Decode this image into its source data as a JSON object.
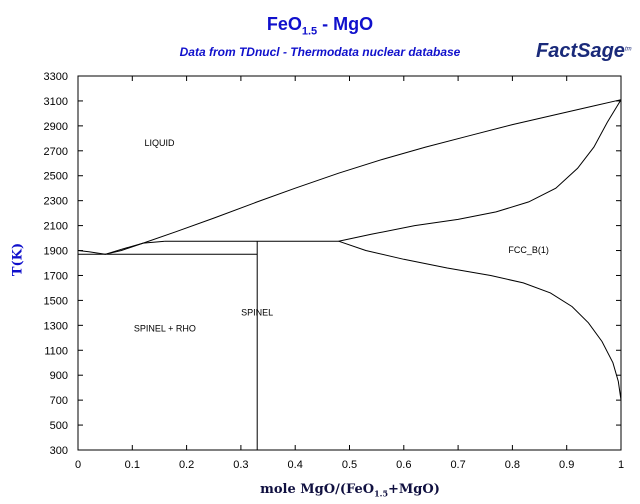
{
  "chart_data": {
    "type": "line",
    "title": {
      "main": "FeO",
      "sub": "1.5",
      "rest": " - MgO"
    },
    "subtitle": "Data from TDnucl - Thermodata nuclear database",
    "logo": {
      "text": "FactSage",
      "mark": "tm"
    },
    "xlabel": {
      "pre": "mole MgO/(FeO",
      "sub": "1.5",
      "post": "+MgO)"
    },
    "ylabel": "T(K)",
    "xlim": [
      0,
      1
    ],
    "ylim": [
      300,
      3300
    ],
    "x_ticks": [
      0,
      0.1,
      0.2,
      0.3,
      0.4,
      0.5,
      0.6,
      0.7,
      0.8,
      0.9,
      1
    ],
    "x_tick_labels": [
      "0",
      "0.1",
      "0.2",
      "0.3",
      "0.4",
      "0.5",
      "0.6",
      "0.7",
      "0.8",
      "0.9",
      "1"
    ],
    "y_ticks": [
      300,
      500,
      700,
      900,
      1100,
      1300,
      1500,
      1700,
      1900,
      2100,
      2300,
      2500,
      2700,
      2900,
      3100,
      3300
    ],
    "grid": false,
    "line_color": "#000000",
    "region_labels": [
      {
        "text": "LIQUID",
        "x": 0.15,
        "y": 2740
      },
      {
        "text": "FCC_B(1)",
        "x": 0.83,
        "y": 1880
      },
      {
        "text": "SPINEL",
        "x": 0.33,
        "y": 1380
      },
      {
        "text": "SPINEL + RHO",
        "x": 0.16,
        "y": 1250
      }
    ],
    "series": [
      {
        "points": [
          [
            0,
            1900
          ],
          [
            0.02,
            1890
          ],
          [
            0.05,
            1870
          ],
          [
            0.08,
            1900
          ],
          [
            0.12,
            1960
          ],
          [
            0.18,
            2050
          ],
          [
            0.25,
            2160
          ],
          [
            0.33,
            2290
          ],
          [
            0.4,
            2400
          ],
          [
            0.48,
            2520
          ],
          [
            0.56,
            2630
          ],
          [
            0.64,
            2730
          ],
          [
            0.72,
            2820
          ],
          [
            0.8,
            2910
          ],
          [
            0.88,
            2990
          ],
          [
            0.95,
            3060
          ],
          [
            1,
            3110
          ]
        ]
      },
      {
        "points": [
          [
            0.05,
            1870
          ],
          [
            0.08,
            1910
          ],
          [
            0.12,
            1960
          ],
          [
            0.16,
            1975
          ]
        ]
      },
      {
        "points": [
          [
            0.48,
            1975
          ],
          [
            0.54,
            2030
          ],
          [
            0.62,
            2100
          ],
          [
            0.7,
            2150
          ],
          [
            0.77,
            2210
          ],
          [
            0.83,
            2290
          ],
          [
            0.88,
            2400
          ],
          [
            0.92,
            2560
          ],
          [
            0.95,
            2730
          ],
          [
            0.975,
            2930
          ],
          [
            1,
            3110
          ]
        ]
      },
      {
        "points": [
          [
            0.48,
            1975
          ],
          [
            0.53,
            1900
          ],
          [
            0.6,
            1830
          ],
          [
            0.68,
            1760
          ],
          [
            0.76,
            1700
          ],
          [
            0.82,
            1640
          ],
          [
            0.87,
            1560
          ],
          [
            0.91,
            1450
          ],
          [
            0.94,
            1320
          ],
          [
            0.965,
            1170
          ],
          [
            0.985,
            1000
          ],
          [
            0.995,
            850
          ],
          [
            1,
            700
          ]
        ]
      },
      {
        "points": [
          [
            0.16,
            1975
          ],
          [
            0.48,
            1975
          ]
        ]
      },
      {
        "points": [
          [
            0,
            1870
          ],
          [
            0.33,
            1870
          ]
        ]
      },
      {
        "points": [
          [
            0.33,
            300
          ],
          [
            0.33,
            1975
          ]
        ]
      }
    ]
  }
}
